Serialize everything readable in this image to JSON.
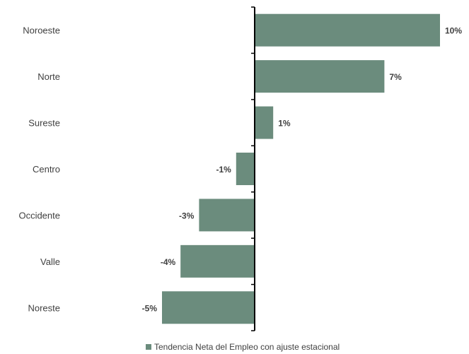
{
  "chart_data": {
    "type": "bar",
    "orientation": "horizontal",
    "categories": [
      "Noroeste",
      "Norte",
      "Sureste",
      "Centro",
      "Occidente",
      "Valle",
      "Noreste"
    ],
    "series": [
      {
        "name": "Tendencia Neta del Empleo con ajuste estacional",
        "values": [
          10,
          7,
          1,
          -1,
          -3,
          -4,
          -5
        ],
        "labels": [
          "10%",
          "7%",
          "1%",
          "-1%",
          "-3%",
          "-4%",
          "-5%"
        ],
        "color": "#6b8c7d"
      }
    ],
    "xlim": [
      -5,
      10
    ],
    "legend_position": "bottom",
    "grid": false
  }
}
